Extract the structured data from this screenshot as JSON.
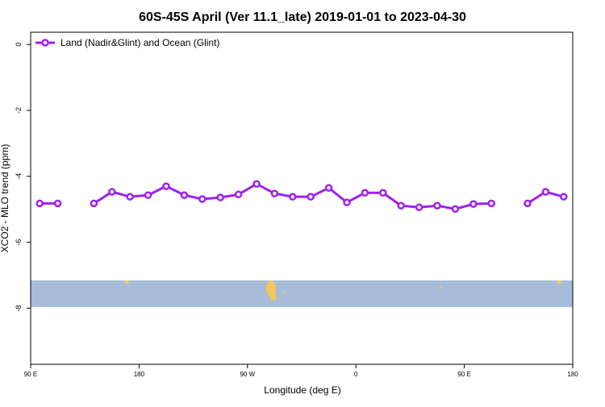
{
  "chart_data": {
    "type": "line",
    "title": "60S-45S April (Ver 11.1_late)   2019-01-01 to 2023-04-30",
    "x_label": "Longitude (deg E)",
    "y_label": "XCO2 - MLO trend (ppm)",
    "xlim": [
      90,
      540
    ],
    "xticks": [
      {
        "value": 90,
        "label": "90 E"
      },
      {
        "value": 180,
        "label": "180"
      },
      {
        "value": 270,
        "label": "90 W"
      },
      {
        "value": 360,
        "label": "0"
      },
      {
        "value": 450,
        "label": "90 E"
      },
      {
        "value": 540,
        "label": "180"
      }
    ],
    "ylim": [
      -9.7,
      0.37
    ],
    "yticks": [
      0,
      -2,
      -4,
      -6,
      -8
    ],
    "legend": "top-left",
    "x": [
      97.5,
      112.5,
      127.5,
      142.5,
      157.5,
      172.5,
      187.5,
      202.5,
      217.5,
      232.5,
      247.5,
      262.5,
      277.5,
      292.5,
      307.5,
      322.5,
      337.5,
      352.5,
      367.5,
      382.5,
      397.5,
      412.5,
      427.5,
      442.5,
      457.5,
      472.5,
      487.5,
      502.5,
      517.5,
      532.5
    ],
    "series": [
      {
        "name": "Land (Nadir&Glint) and Ocean (Glint)",
        "color": "#a020f0",
        "values": [
          -4.82,
          -4.82,
          null,
          -4.82,
          -4.47,
          -4.62,
          -4.57,
          -4.3,
          -4.57,
          -4.69,
          -4.64,
          -4.55,
          -4.23,
          -4.52,
          -4.62,
          -4.62,
          -4.35,
          -4.79,
          -4.5,
          -4.5,
          -4.89,
          -4.94,
          -4.89,
          -4.99,
          -4.84,
          -4.82,
          null,
          -4.82,
          -4.47,
          -4.62
        ]
      }
    ]
  }
}
